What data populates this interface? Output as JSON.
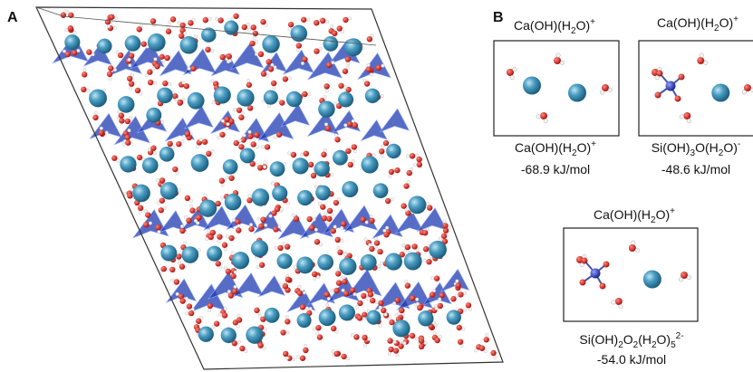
{
  "panel_a": {
    "label": "A"
  },
  "panel_b": {
    "label": "B",
    "boxes": [
      {
        "title": [
          {
            "text": "Ca(OH)(H"
          },
          {
            "sub": "2"
          },
          {
            "text": "O)"
          },
          {
            "sup": "+"
          }
        ],
        "species": [
          {
            "text": "Ca(OH)(H"
          },
          {
            "sub": "2"
          },
          {
            "text": "O)"
          },
          {
            "sup": "+"
          }
        ],
        "energy": "-68.9 kJ/mol"
      },
      {
        "title": [
          {
            "text": "Ca(OH)(H"
          },
          {
            "sub": "2"
          },
          {
            "text": "O)"
          },
          {
            "sup": "+"
          }
        ],
        "species": [
          {
            "text": "Si(OH)"
          },
          {
            "sub": "3"
          },
          {
            "text": "O(H"
          },
          {
            "sub": "2"
          },
          {
            "text": "O)"
          },
          {
            "sup": "-"
          }
        ],
        "energy": "-48.6 kJ/mol"
      },
      {
        "title": [
          {
            "text": "Ca(OH)(H"
          },
          {
            "sub": "2"
          },
          {
            "text": "O)"
          },
          {
            "sup": "+"
          }
        ],
        "species": [
          {
            "text": "Si(OH)"
          },
          {
            "sub": "2"
          },
          {
            "text": "O"
          },
          {
            "sub": "2"
          },
          {
            "text": "(H"
          },
          {
            "sub": "2"
          },
          {
            "text": "O)"
          },
          {
            "sub": "5"
          },
          {
            "sup": "2-"
          }
        ],
        "energy": "-54.0 kJ/mol"
      }
    ]
  }
}
